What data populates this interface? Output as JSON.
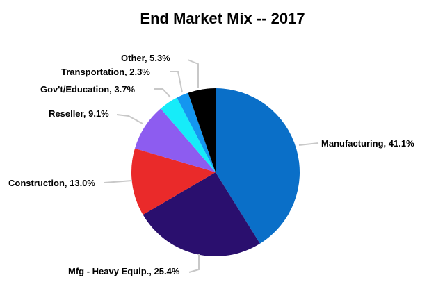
{
  "chart_data": {
    "type": "pie",
    "title": "End Market Mix -- 2017",
    "slices": [
      {
        "name": "Manufacturing",
        "value": 41.1,
        "label": "Manufacturing, 41.1%",
        "color": "#0a6fc8"
      },
      {
        "name": "Mfg - Heavy Equip.",
        "value": 25.4,
        "label": "Mfg - Heavy Equip., 25.4%",
        "color": "#2a0f6e"
      },
      {
        "name": "Construction",
        "value": 13.0,
        "label": "Construction, 13.0%",
        "color": "#ea2a2a"
      },
      {
        "name": "Reseller",
        "value": 9.1,
        "label": "Reseller, 9.1%",
        "color": "#8d5cf0"
      },
      {
        "name": "Gov't/Education",
        "value": 3.7,
        "label": "Gov't/Education, 3.7%",
        "color": "#16ecf9"
      },
      {
        "name": "Transportation",
        "value": 2.3,
        "label": "Transportation, 2.3%",
        "color": "#1496f0"
      },
      {
        "name": "Other",
        "value": 5.3,
        "label": "Other, 5.3%",
        "color": "#000000"
      }
    ],
    "start_angle_deg": 0,
    "direction": "clockwise",
    "legend": "none"
  }
}
